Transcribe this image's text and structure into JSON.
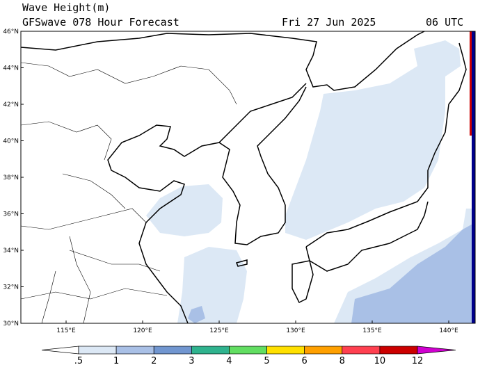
{
  "header": {
    "title": "Wave Height(m)",
    "subtitle": "GFSwave 078 Hour Forecast",
    "date": "Fri 27 Jun 2025",
    "time": "06 UTC"
  },
  "latitude_labels": [
    "30°N",
    "32°N",
    "34°N",
    "36°N",
    "38°N",
    "40°N",
    "42°N",
    "44°N",
    "46°N"
  ],
  "longitude_labels": [
    "115°E",
    "120°E",
    "125°E",
    "130°E",
    "135°E",
    "140°E"
  ],
  "colorbar": {
    "labels": [
      ".5",
      "1",
      "2",
      "3",
      "4",
      "5",
      "6",
      "8",
      "10",
      "12"
    ],
    "colors": [
      "#ffffff",
      "#dce8f5",
      "#a9c0e6",
      "#7196d0",
      "#2fb38e",
      "#62de62",
      "#ffe000",
      "#ffa000",
      "#ff4050",
      "#cc0000",
      "#d000d0"
    ]
  }
}
